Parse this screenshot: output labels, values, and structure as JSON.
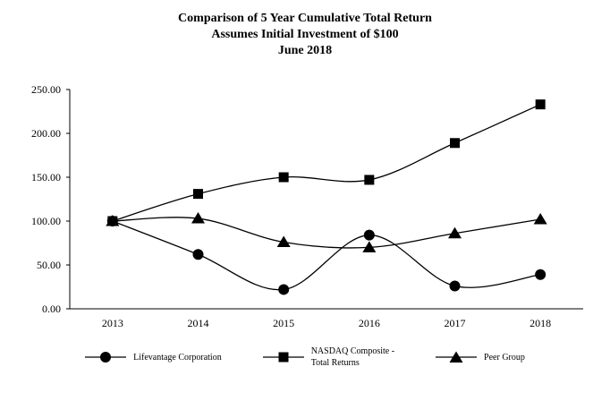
{
  "chart_data": {
    "type": "line",
    "title_lines": [
      "Comparison of 5 Year Cumulative Total Return",
      "Assumes Initial Investment of $100",
      "June 2018"
    ],
    "categories": [
      "2013",
      "2014",
      "2015",
      "2016",
      "2017",
      "2018"
    ],
    "series": [
      {
        "name": "Lifevantage Corporation",
        "marker": "circle",
        "values": [
          100,
          62,
          22,
          84,
          26,
          39
        ]
      },
      {
        "name": "NASDAQ Composite - Total Returns",
        "marker": "square",
        "values": [
          100,
          131,
          150,
          147,
          189,
          233
        ]
      },
      {
        "name": "Peer Group",
        "marker": "triangle",
        "values": [
          100,
          103,
          76,
          70,
          86,
          102
        ]
      }
    ],
    "ylim": [
      0,
      250
    ],
    "ytick_step": 50,
    "ytick_labels": [
      "0.00",
      "50.00",
      "100.00",
      "150.00",
      "200.00",
      "250.00"
    ],
    "grid": false,
    "legend_position": "bottom",
    "line_color": "#000000",
    "marker_color": "#000000"
  },
  "legend": {
    "items": [
      {
        "label": "Lifevantage Corporation",
        "marker": "circle"
      },
      {
        "label": "NASDAQ Composite -\nTotal Returns",
        "marker": "square"
      },
      {
        "label": "Peer Group",
        "marker": "triangle"
      }
    ]
  }
}
